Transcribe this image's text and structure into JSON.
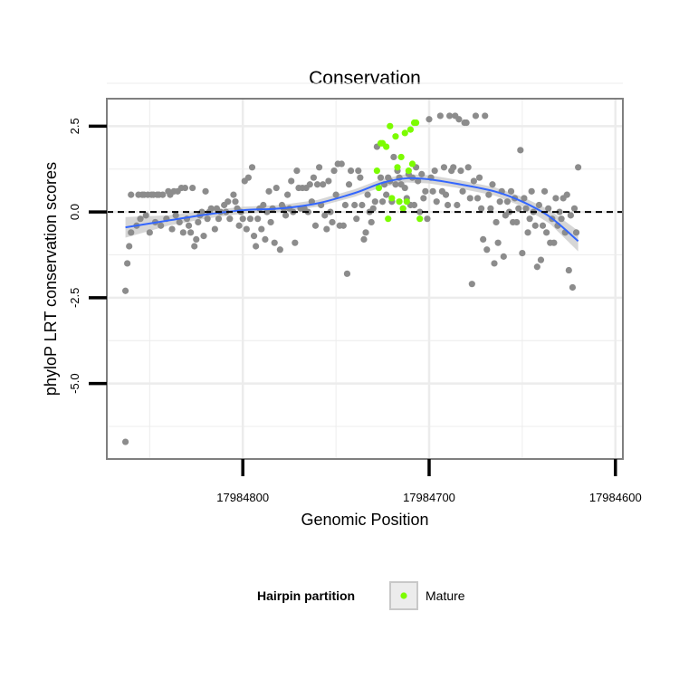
{
  "chart_data": {
    "type": "scatter",
    "title": "Conservation",
    "xlabel": "Genomic Position",
    "ylabel": "phyloP LRT conservation scores",
    "x_reversed": true,
    "xlim": [
      17984873,
      17984596
    ],
    "ylim": [
      -7.2,
      3.3
    ],
    "x_ticks": [
      17984800,
      17984700,
      17984600
    ],
    "x_tick_labels": [
      "17984800",
      "17984700",
      "17984600"
    ],
    "y_ticks": [
      2.5,
      0,
      -2.5,
      -5
    ],
    "y_tick_labels": [
      "2.5",
      "0.0",
      "-2.5",
      "-5.0"
    ],
    "grid": true,
    "reference_line": {
      "y": 0,
      "style": "dashed",
      "color": "#000000"
    },
    "legend": {
      "title": "Hairpin partition",
      "position": "bottom",
      "entries": [
        {
          "label": "Mature",
          "color": "#7cfc00"
        }
      ]
    },
    "colors": {
      "other": "#8c8c8c",
      "mature": "#7cfc00",
      "smooth": "#3366ff",
      "ribbon": "#c8c8c8",
      "panel_border": "#7f7f7f",
      "grid": "#ececec"
    },
    "series": [
      {
        "name": "",
        "color": "#8c8c8c",
        "points": [
          [
            17984863,
            -6.7
          ],
          [
            17984863,
            -2.3
          ],
          [
            17984862,
            -1.5
          ],
          [
            17984861,
            -1.0
          ],
          [
            17984860,
            -0.6
          ],
          [
            17984860,
            0.5
          ],
          [
            17984857,
            -0.4
          ],
          [
            17984856,
            0.5
          ],
          [
            17984855,
            -0.2
          ],
          [
            17984854,
            0.5
          ],
          [
            17984853,
            0.5
          ],
          [
            17984852,
            -0.1
          ],
          [
            17984851,
            0.5
          ],
          [
            17984850,
            -0.6
          ],
          [
            17984849,
            0.5
          ],
          [
            17984848,
            0.5
          ],
          [
            17984847,
            -0.3
          ],
          [
            17984846,
            0.5
          ],
          [
            17984845,
            0.5
          ],
          [
            17984844,
            -0.4
          ],
          [
            17984843,
            0.5
          ],
          [
            17984841,
            -0.2
          ],
          [
            17984840,
            0.6
          ],
          [
            17984839,
            0.5
          ],
          [
            17984838,
            -0.5
          ],
          [
            17984837,
            0.6
          ],
          [
            17984836,
            -0.1
          ],
          [
            17984835,
            0.6
          ],
          [
            17984834,
            -0.3
          ],
          [
            17984833,
            0.7
          ],
          [
            17984832,
            -0.6
          ],
          [
            17984831,
            0.7
          ],
          [
            17984830,
            -0.2
          ],
          [
            17984829,
            -0.4
          ],
          [
            17984828,
            -0.6
          ],
          [
            17984827,
            0.7
          ],
          [
            17984826,
            -1.0
          ],
          [
            17984825,
            -0.8
          ],
          [
            17984824,
            -0.3
          ],
          [
            17984823,
            -0.1
          ],
          [
            17984822,
            0.0
          ],
          [
            17984821,
            -0.7
          ],
          [
            17984820,
            0.6
          ],
          [
            17984819,
            -0.2
          ],
          [
            17984818,
            0.0
          ],
          [
            17984817,
            0.1
          ],
          [
            17984815,
            -0.5
          ],
          [
            17984814,
            0.1
          ],
          [
            17984813,
            -0.2
          ],
          [
            17984812,
            0.0
          ],
          [
            17984810,
            0.2
          ],
          [
            17984809,
            0.0
          ],
          [
            17984808,
            0.3
          ],
          [
            17984807,
            -0.2
          ],
          [
            17984805,
            0.5
          ],
          [
            17984804,
            0.3
          ],
          [
            17984803,
            0.1
          ],
          [
            17984802,
            -0.4
          ],
          [
            17984801,
            0.0
          ],
          [
            17984800,
            -0.2
          ],
          [
            17984799,
            0.9
          ],
          [
            17984798,
            -0.5
          ],
          [
            17984797,
            1.0
          ],
          [
            17984796,
            -0.2
          ],
          [
            17984795,
            1.3
          ],
          [
            17984794,
            -0.7
          ],
          [
            17984793,
            -1.0
          ],
          [
            17984792,
            -0.2
          ],
          [
            17984791,
            0.1
          ],
          [
            17984790,
            -0.5
          ],
          [
            17984789,
            0.2
          ],
          [
            17984788,
            -0.8
          ],
          [
            17984787,
            0.0
          ],
          [
            17984786,
            0.6
          ],
          [
            17984785,
            -0.3
          ],
          [
            17984784,
            0.1
          ],
          [
            17984783,
            -0.9
          ],
          [
            17984782,
            0.7
          ],
          [
            17984780,
            -1.1
          ],
          [
            17984779,
            0.2
          ],
          [
            17984778,
            0.1
          ],
          [
            17984777,
            -0.1
          ],
          [
            17984776,
            0.5
          ],
          [
            17984775,
            0.1
          ],
          [
            17984774,
            0.9
          ],
          [
            17984773,
            0.0
          ],
          [
            17984772,
            -0.9
          ],
          [
            17984771,
            1.2
          ],
          [
            17984770,
            0.7
          ],
          [
            17984769,
            0.1
          ],
          [
            17984768,
            0.7
          ],
          [
            17984767,
            0.1
          ],
          [
            17984766,
            0.7
          ],
          [
            17984765,
            0.0
          ],
          [
            17984764,
            0.8
          ],
          [
            17984763,
            0.3
          ],
          [
            17984762,
            1.0
          ],
          [
            17984761,
            -0.4
          ],
          [
            17984760,
            0.8
          ],
          [
            17984759,
            1.3
          ],
          [
            17984758,
            0.2
          ],
          [
            17984757,
            0.8
          ],
          [
            17984756,
            -0.1
          ],
          [
            17984755,
            -0.5
          ],
          [
            17984754,
            0.9
          ],
          [
            17984753,
            0.0
          ],
          [
            17984752,
            -0.3
          ],
          [
            17984751,
            1.2
          ],
          [
            17984750,
            0.5
          ],
          [
            17984749,
            1.4
          ],
          [
            17984748,
            -0.4
          ],
          [
            17984747,
            1.4
          ],
          [
            17984746,
            -0.4
          ],
          [
            17984745,
            0.2
          ],
          [
            17984744,
            -1.8
          ],
          [
            17984743,
            0.8
          ],
          [
            17984742,
            1.2
          ],
          [
            17984740,
            0.2
          ],
          [
            17984739,
            -0.2
          ],
          [
            17984738,
            1.2
          ],
          [
            17984737,
            1.0
          ],
          [
            17984736,
            0.2
          ],
          [
            17984735,
            -0.8
          ],
          [
            17984734,
            -0.6
          ],
          [
            17984733,
            0.5
          ],
          [
            17984732,
            0.0
          ],
          [
            17984731,
            -0.3
          ],
          [
            17984730,
            0.1
          ],
          [
            17984729,
            0.3
          ],
          [
            17984728,
            1.9
          ],
          [
            17984726,
            1.0
          ],
          [
            17984725,
            0.3
          ],
          [
            17984724,
            0.8
          ],
          [
            17984723,
            0.5
          ],
          [
            17984722,
            1.0
          ],
          [
            17984721,
            0.9
          ],
          [
            17984720,
            0.3
          ],
          [
            17984719,
            1.6
          ],
          [
            17984718,
            0.8
          ],
          [
            17984717,
            1.2
          ],
          [
            17984716,
            1.0
          ],
          [
            17984715,
            0.8
          ],
          [
            17984714,
            0.1
          ],
          [
            17984713,
            0.7
          ],
          [
            17984712,
            0.4
          ],
          [
            17984711,
            1.1
          ],
          [
            17984710,
            0.2
          ],
          [
            17984709,
            1.0
          ],
          [
            17984708,
            0.2
          ],
          [
            17984707,
            1.3
          ],
          [
            17984706,
            0.9
          ],
          [
            17984705,
            0.0
          ],
          [
            17984704,
            1.1
          ],
          [
            17984703,
            0.4
          ],
          [
            17984702,
            0.6
          ],
          [
            17984701,
            -0.2
          ],
          [
            17984700,
            2.7
          ],
          [
            17984699,
            1.0
          ],
          [
            17984698,
            0.6
          ],
          [
            17984697,
            1.2
          ],
          [
            17984696,
            0.3
          ],
          [
            17984694,
            2.8
          ],
          [
            17984693,
            0.6
          ],
          [
            17984692,
            1.3
          ],
          [
            17984691,
            0.5
          ],
          [
            17984690,
            0.2
          ],
          [
            17984689,
            2.8
          ],
          [
            17984688,
            1.2
          ],
          [
            17984687,
            1.3
          ],
          [
            17984686,
            2.8
          ],
          [
            17984685,
            0.2
          ],
          [
            17984684,
            2.7
          ],
          [
            17984683,
            1.2
          ],
          [
            17984682,
            0.6
          ],
          [
            17984681,
            2.6
          ],
          [
            17984680,
            2.6
          ],
          [
            17984679,
            1.3
          ],
          [
            17984678,
            0.4
          ],
          [
            17984677,
            -2.1
          ],
          [
            17984676,
            0.9
          ],
          [
            17984675,
            2.8
          ],
          [
            17984674,
            0.4
          ],
          [
            17984673,
            1.0
          ],
          [
            17984672,
            0.1
          ],
          [
            17984671,
            -0.8
          ],
          [
            17984670,
            2.8
          ],
          [
            17984669,
            -1.1
          ],
          [
            17984668,
            0.5
          ],
          [
            17984667,
            0.1
          ],
          [
            17984666,
            0.8
          ],
          [
            17984665,
            -1.5
          ],
          [
            17984664,
            -0.3
          ],
          [
            17984663,
            -0.9
          ],
          [
            17984662,
            0.3
          ],
          [
            17984661,
            0.6
          ],
          [
            17984660,
            -1.3
          ],
          [
            17984659,
            -0.1
          ],
          [
            17984658,
            0.3
          ],
          [
            17984657,
            0.0
          ],
          [
            17984656,
            0.6
          ],
          [
            17984655,
            -0.3
          ],
          [
            17984654,
            0.4
          ],
          [
            17984653,
            -0.3
          ],
          [
            17984652,
            0.1
          ],
          [
            17984651,
            1.8
          ],
          [
            17984650,
            -1.2
          ],
          [
            17984649,
            0.4
          ],
          [
            17984648,
            0.1
          ],
          [
            17984647,
            -0.6
          ],
          [
            17984646,
            -0.2
          ],
          [
            17984645,
            0.6
          ],
          [
            17984644,
            0.0
          ],
          [
            17984643,
            -0.4
          ],
          [
            17984642,
            -1.6
          ],
          [
            17984641,
            0.2
          ],
          [
            17984640,
            -1.4
          ],
          [
            17984639,
            -0.4
          ],
          [
            17984638,
            0.6
          ],
          [
            17984637,
            -0.6
          ],
          [
            17984636,
            0.1
          ],
          [
            17984635,
            -0.9
          ],
          [
            17984634,
            -0.2
          ],
          [
            17984633,
            -0.9
          ],
          [
            17984632,
            0.4
          ],
          [
            17984631,
            -0.4
          ],
          [
            17984630,
            0.0
          ],
          [
            17984629,
            -0.2
          ],
          [
            17984628,
            0.4
          ],
          [
            17984627,
            -0.6
          ],
          [
            17984626,
            0.5
          ],
          [
            17984625,
            -1.7
          ],
          [
            17984624,
            -0.1
          ],
          [
            17984623,
            -2.2
          ],
          [
            17984622,
            0.1
          ],
          [
            17984621,
            -0.6
          ],
          [
            17984620,
            1.3
          ]
        ]
      },
      {
        "name": "Mature",
        "color": "#7cfc00",
        "points": [
          [
            17984728,
            1.2
          ],
          [
            17984727,
            0.7
          ],
          [
            17984726,
            2.0
          ],
          [
            17984725,
            2.0
          ],
          [
            17984723,
            1.9
          ],
          [
            17984722,
            -0.2
          ],
          [
            17984721,
            2.5
          ],
          [
            17984720,
            0.4
          ],
          [
            17984718,
            2.2
          ],
          [
            17984717,
            1.3
          ],
          [
            17984716,
            0.3
          ],
          [
            17984715,
            1.6
          ],
          [
            17984714,
            0.1
          ],
          [
            17984713,
            2.3
          ],
          [
            17984712,
            0.3
          ],
          [
            17984711,
            1.2
          ],
          [
            17984710,
            2.4
          ],
          [
            17984709,
            1.4
          ],
          [
            17984708,
            2.6
          ],
          [
            17984707,
            2.6
          ],
          [
            17984705,
            -0.2
          ]
        ]
      }
    ],
    "smooth": {
      "x": [
        17984863,
        17984840,
        17984820,
        17984800,
        17984780,
        17984760,
        17984740,
        17984725,
        17984712,
        17984700,
        17984685,
        17984665,
        17984650,
        17984635,
        17984620
      ],
      "y": [
        -0.45,
        -0.25,
        -0.08,
        0.05,
        0.1,
        0.25,
        0.55,
        0.85,
        0.98,
        0.95,
        0.82,
        0.6,
        0.3,
        -0.15,
        -0.85
      ],
      "se": [
        0.3,
        0.15,
        0.12,
        0.1,
        0.1,
        0.1,
        0.11,
        0.12,
        0.12,
        0.12,
        0.12,
        0.12,
        0.14,
        0.2,
        0.3
      ]
    }
  }
}
